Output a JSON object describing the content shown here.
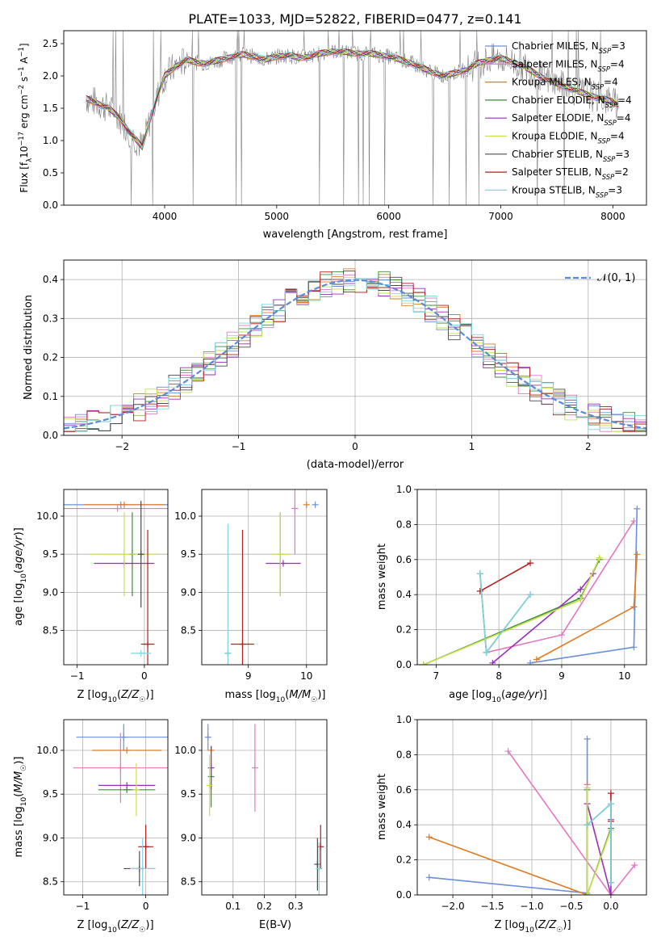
{
  "figure_title": "PLATE=1033, MJD=52822, FIBERID=0477, z=0.141",
  "colors": {
    "Chabrier MILES": "#6a8fdc",
    "Salpeter MILES": "#e377c2",
    "Kroupa MILES": "#e07b22",
    "Chabrier ELODIE": "#3e8a3e",
    "Salpeter ELODIE": "#9b2dbb",
    "Kroupa ELODIE": "#c6e048",
    "Chabrier STELIB": "#4a4a4a",
    "Salpeter STELIB": "#b51c1c",
    "Kroupa STELIB": "#7fd6df",
    "data": "#808080",
    "normal": "#5b8bd6"
  },
  "chart_data": [
    {
      "id": "spectrum",
      "type": "line",
      "xlabel": "wavelength [Angstrom, rest frame]",
      "ylabel": "Flux [f_λ 10^-17 erg cm^-2 s^-1 A^-1]",
      "xlim": [
        3100,
        8300
      ],
      "ylim": [
        0,
        2.7
      ],
      "xticks": [
        4000,
        5000,
        6000,
        7000,
        8000
      ],
      "yticks": [
        0.0,
        0.5,
        1.0,
        1.5,
        2.0,
        2.5
      ],
      "legend_position": "upper-right",
      "legend": [
        {
          "name": "Chabrier MILES",
          "sub": "3"
        },
        {
          "name": "Salpeter MILES",
          "sub": "4"
        },
        {
          "name": "Kroupa MILES",
          "sub": "4"
        },
        {
          "name": "Chabrier ELODIE",
          "sub": "4"
        },
        {
          "name": "Salpeter ELODIE",
          "sub": "4"
        },
        {
          "name": "Kroupa ELODIE",
          "sub": "4"
        },
        {
          "name": "Chabrier STELIB",
          "sub": "3"
        },
        {
          "name": "Salpeter STELIB",
          "sub": "2"
        },
        {
          "name": "Kroupa STELIB",
          "sub": "3"
        }
      ],
      "model_curve": {
        "x": [
          3300,
          3400,
          3500,
          3600,
          3700,
          3800,
          3900,
          4000,
          4100,
          4200,
          4300,
          4400,
          4500,
          4600,
          4700,
          4800,
          4900,
          5000,
          5100,
          5200,
          5300,
          5400,
          5500,
          5600,
          5700,
          5800,
          5900,
          6000,
          6100,
          6200,
          6300,
          6400,
          6500,
          6600,
          6700,
          6800,
          6900,
          7000,
          7100,
          7200,
          7300,
          7400,
          7500,
          7600,
          7700,
          7800,
          7900,
          8000,
          8050
        ],
        "y": [
          1.65,
          1.58,
          1.5,
          1.35,
          1.1,
          0.9,
          1.5,
          2.0,
          2.15,
          2.25,
          2.2,
          2.2,
          2.25,
          2.3,
          2.33,
          2.3,
          2.25,
          2.3,
          2.32,
          2.28,
          2.3,
          2.35,
          2.38,
          2.37,
          2.35,
          2.35,
          2.33,
          2.3,
          2.25,
          2.2,
          2.12,
          2.05,
          2.0,
          2.05,
          2.1,
          2.2,
          2.25,
          2.27,
          2.22,
          2.15,
          2.05,
          1.95,
          1.88,
          1.82,
          1.75,
          1.7,
          1.65,
          1.6,
          1.55
        ]
      }
    },
    {
      "id": "residuals",
      "type": "bar",
      "xlabel": "(data-model)/error",
      "ylabel": "Normed distribution",
      "xlim": [
        -2.5,
        2.5
      ],
      "ylim": [
        0,
        0.45
      ],
      "xticks": [
        -2,
        -1,
        0,
        1,
        2
      ],
      "yticks": [
        0.0,
        0.1,
        0.2,
        0.3,
        0.4
      ],
      "legend_position": "upper-right",
      "normal_label": "𝒩(0, 1)"
    },
    {
      "id": "age-vs-Z",
      "type": "scatter",
      "xlabel": "Z [log10(Z/Z☉)]",
      "ylabel": "age  [log10(age/yr)]",
      "xlim": [
        -1.2,
        0.35
      ],
      "ylim": [
        8.05,
        10.35
      ],
      "xticks": [
        -1,
        0
      ],
      "yticks": [
        8.5,
        9.0,
        9.5,
        10.0
      ],
      "points": [
        {
          "model": "Chabrier MILES",
          "x": -0.35,
          "y": 10.15,
          "xerr": 1.1,
          "yerr": 0.0
        },
        {
          "model": "Salpeter MILES",
          "x": -0.4,
          "y": 10.1,
          "xerr": 0.9,
          "yerr": 0.0
        },
        {
          "model": "Kroupa MILES",
          "x": -0.3,
          "y": 10.15,
          "xerr": 0.6,
          "yerr": 0.0
        },
        {
          "model": "Chabrier ELODIE",
          "x": -0.18,
          "y": 9.5,
          "xerr": 0.0,
          "yerr": 0.55
        },
        {
          "model": "Salpeter ELODIE",
          "x": -0.3,
          "y": 9.38,
          "xerr": 0.45,
          "yerr": 0.0
        },
        {
          "model": "Kroupa ELODIE",
          "x": -0.3,
          "y": 9.5,
          "xerr": 0.5,
          "yerr": 0.55
        },
        {
          "model": "Chabrier STELIB",
          "x": -0.05,
          "y": 9.5,
          "xerr": 0.0,
          "yerr": 0.7
        },
        {
          "model": "Salpeter STELIB",
          "x": 0.05,
          "y": 8.32,
          "xerr": 0.1,
          "yerr": 1.5
        },
        {
          "model": "Kroupa STELIB",
          "x": -0.05,
          "y": 8.2,
          "xerr": 0.15,
          "yerr": 0.0
        }
      ]
    },
    {
      "id": "age-vs-mass",
      "type": "scatter",
      "xlabel": "mass [log10(M/M☉)]",
      "ylabel": "",
      "xlim": [
        8.2,
        10.35
      ],
      "ylim": [
        8.05,
        10.35
      ],
      "xticks": [
        9,
        10
      ],
      "yticks": [
        8.5,
        9.0,
        9.5,
        10.0
      ],
      "points": [
        {
          "model": "Chabrier MILES",
          "x": 10.15,
          "y": 10.15,
          "xerr": 0.0,
          "yerr": 0.0
        },
        {
          "model": "Salpeter MILES",
          "x": 9.8,
          "y": 10.1,
          "xerr": 0.0,
          "yerr": 0.6
        },
        {
          "model": "Kroupa MILES",
          "x": 10.0,
          "y": 10.15,
          "xerr": 0.0,
          "yerr": 0.0
        },
        {
          "model": "Chabrier ELODIE",
          "x": 9.55,
          "y": 9.5,
          "xerr": 0.0,
          "yerr": 0.55
        },
        {
          "model": "Salpeter ELODIE",
          "x": 9.6,
          "y": 9.38,
          "xerr": 0.3,
          "yerr": 0.0
        },
        {
          "model": "Kroupa ELODIE",
          "x": 9.55,
          "y": 9.5,
          "xerr": 0.15,
          "yerr": 0.55
        },
        {
          "model": "Chabrier STELIB",
          "x": 8.65,
          "y": 8.2,
          "xerr": 0.0,
          "yerr": 0.0
        },
        {
          "model": "Salpeter STELIB",
          "x": 8.9,
          "y": 8.32,
          "xerr": 0.2,
          "yerr": 1.5
        },
        {
          "model": "Kroupa STELIB",
          "x": 8.65,
          "y": 8.2,
          "xerr": 0.0,
          "yerr": 1.7
        }
      ]
    },
    {
      "id": "weight-vs-age",
      "type": "line",
      "xlabel": "age  [log10(age/yr)]",
      "ylabel": "mass weight",
      "xlim": [
        6.7,
        10.35
      ],
      "ylim": [
        0,
        1.0
      ],
      "xticks": [
        7,
        8,
        9,
        10
      ],
      "yticks": [
        0.0,
        0.2,
        0.4,
        0.6,
        0.8,
        1.0
      ],
      "series": [
        {
          "model": "Chabrier MILES",
          "x": [
            8.5,
            10.15,
            10.2
          ],
          "y": [
            0.01,
            0.1,
            0.89
          ]
        },
        {
          "model": "Salpeter MILES",
          "x": [
            7.8,
            9.0,
            10.15
          ],
          "y": [
            0.07,
            0.17,
            0.82
          ]
        },
        {
          "model": "Kroupa MILES",
          "x": [
            8.6,
            10.15,
            10.2
          ],
          "y": [
            0.03,
            0.33,
            0.63
          ]
        },
        {
          "model": "Chabrier ELODIE",
          "x": [
            6.8,
            9.3,
            9.6
          ],
          "y": [
            0.0,
            0.38,
            0.6
          ]
        },
        {
          "model": "Salpeter ELODIE",
          "x": [
            7.9,
            9.3,
            9.5
          ],
          "y": [
            0.01,
            0.43,
            0.52
          ]
        },
        {
          "model": "Kroupa ELODIE",
          "x": [
            6.8,
            9.3,
            9.6
          ],
          "y": [
            0.0,
            0.37,
            0.61
          ]
        },
        {
          "model": "Chabrier STELIB",
          "x": [
            7.7,
            7.8,
            8.5
          ],
          "y": [
            0.52,
            0.07,
            0.4
          ]
        },
        {
          "model": "Salpeter STELIB",
          "x": [
            7.7,
            8.5
          ],
          "y": [
            0.42,
            0.58
          ]
        },
        {
          "model": "Kroupa STELIB",
          "x": [
            7.7,
            7.8,
            8.5
          ],
          "y": [
            0.52,
            0.07,
            0.4
          ]
        }
      ]
    },
    {
      "id": "mass-vs-Z",
      "type": "scatter",
      "xlabel": "Z [log10(Z/Z☉)]",
      "ylabel": "mass [log10(M/M☉)]",
      "xlim": [
        -1.3,
        0.35
      ],
      "ylim": [
        8.35,
        10.35
      ],
      "xticks": [
        -1,
        0
      ],
      "yticks": [
        8.5,
        9.0,
        9.5,
        10.0
      ],
      "points": [
        {
          "model": "Chabrier MILES",
          "x": -0.35,
          "y": 10.15,
          "xerr": 0.75,
          "yerr": 0.15
        },
        {
          "model": "Salpeter MILES",
          "x": -0.4,
          "y": 9.8,
          "xerr": 0.75,
          "yerr": 0.4
        },
        {
          "model": "Kroupa MILES",
          "x": -0.3,
          "y": 10.0,
          "xerr": 0.55,
          "yerr": 0.0
        },
        {
          "model": "Chabrier ELODIE",
          "x": -0.3,
          "y": 9.55,
          "xerr": 0.45,
          "yerr": 0.0
        },
        {
          "model": "Salpeter ELODIE",
          "x": -0.3,
          "y": 9.6,
          "xerr": 0.45,
          "yerr": 0.0
        },
        {
          "model": "Kroupa ELODIE",
          "x": -0.15,
          "y": 9.55,
          "xerr": 0.0,
          "yerr": 0.3
        },
        {
          "model": "Chabrier STELIB",
          "x": -0.1,
          "y": 8.65,
          "xerr": 0.25,
          "yerr": 0.2
        },
        {
          "model": "Salpeter STELIB",
          "x": 0.0,
          "y": 8.9,
          "xerr": 0.12,
          "yerr": 0.25
        },
        {
          "model": "Kroupa STELIB",
          "x": -0.05,
          "y": 8.65,
          "xerr": 0.2,
          "yerr": 0.35
        }
      ]
    },
    {
      "id": "mass-vs-ebv",
      "type": "scatter",
      "xlabel": "E(B-V)",
      "ylabel": "",
      "xlim": [
        0.0,
        0.4
      ],
      "ylim": [
        8.35,
        10.35
      ],
      "xticks": [
        0.1,
        0.2,
        0.3
      ],
      "yticks": [
        8.5,
        9.0,
        9.5,
        10.0
      ],
      "points": [
        {
          "model": "Chabrier MILES",
          "x": 0.02,
          "y": 10.15,
          "xerr": 0.0,
          "yerr": 0.15
        },
        {
          "model": "Salpeter MILES",
          "x": 0.17,
          "y": 9.8,
          "xerr": 0.0,
          "yerr": 0.5
        },
        {
          "model": "Kroupa MILES",
          "x": 0.03,
          "y": 10.0,
          "xerr": 0.0,
          "yerr": 0.0
        },
        {
          "model": "Chabrier ELODIE",
          "x": 0.03,
          "y": 9.7,
          "xerr": 0.0,
          "yerr": 0.35
        },
        {
          "model": "Salpeter ELODIE",
          "x": 0.03,
          "y": 9.8,
          "xerr": 0.0,
          "yerr": 0.25
        },
        {
          "model": "Kroupa ELODIE",
          "x": 0.025,
          "y": 9.6,
          "xerr": 0.0,
          "yerr": 0.35
        },
        {
          "model": "Chabrier STELIB",
          "x": 0.37,
          "y": 8.7,
          "xerr": 0.0,
          "yerr": 0.3
        },
        {
          "model": "Salpeter STELIB",
          "x": 0.38,
          "y": 8.9,
          "xerr": 0.0,
          "yerr": 0.25
        },
        {
          "model": "Kroupa STELIB",
          "x": 0.375,
          "y": 8.65,
          "xerr": 0.0,
          "yerr": 0.3
        }
      ]
    },
    {
      "id": "weight-vs-Z",
      "type": "line",
      "xlabel": "Z [log10(Z/Z☉)]",
      "ylabel": "mass weight",
      "xlim": [
        -2.45,
        0.45
      ],
      "ylim": [
        0,
        1.0
      ],
      "xticks": [
        -2.0,
        -1.5,
        -1.0,
        -0.5,
        0.0
      ],
      "yticks": [
        0.0,
        0.2,
        0.4,
        0.6,
        0.8,
        1.0
      ],
      "series": [
        {
          "model": "Chabrier MILES",
          "x": [
            -2.3,
            -0.3,
            -0.3
          ],
          "y": [
            0.1,
            0.01,
            0.89
          ]
        },
        {
          "model": "Salpeter MILES",
          "x": [
            -1.3,
            0.0,
            0.3
          ],
          "y": [
            0.82,
            0.0,
            0.17
          ]
        },
        {
          "model": "Kroupa MILES",
          "x": [
            -2.3,
            -0.3,
            -0.3
          ],
          "y": [
            0.33,
            0.0,
            0.63
          ]
        },
        {
          "model": "Chabrier ELODIE",
          "x": [
            -0.3,
            -0.3,
            0.0
          ],
          "y": [
            0.6,
            0.0,
            0.38
          ]
        },
        {
          "model": "Salpeter ELODIE",
          "x": [
            -0.3,
            0.0,
            0.0
          ],
          "y": [
            0.52,
            0.0,
            0.43
          ]
        },
        {
          "model": "Kroupa ELODIE",
          "x": [
            -0.3,
            -0.3,
            0.0
          ],
          "y": [
            0.61,
            0.0,
            0.37
          ]
        },
        {
          "model": "Chabrier STELIB",
          "x": [
            -0.3,
            0.0,
            0.0
          ],
          "y": [
            0.4,
            0.52,
            0.07
          ]
        },
        {
          "model": "Salpeter STELIB",
          "x": [
            0.0,
            0.0
          ],
          "y": [
            0.58,
            0.42
          ]
        },
        {
          "model": "Kroupa STELIB",
          "x": [
            -0.3,
            0.0,
            0.0
          ],
          "y": [
            0.4,
            0.52,
            0.07
          ]
        }
      ]
    }
  ]
}
